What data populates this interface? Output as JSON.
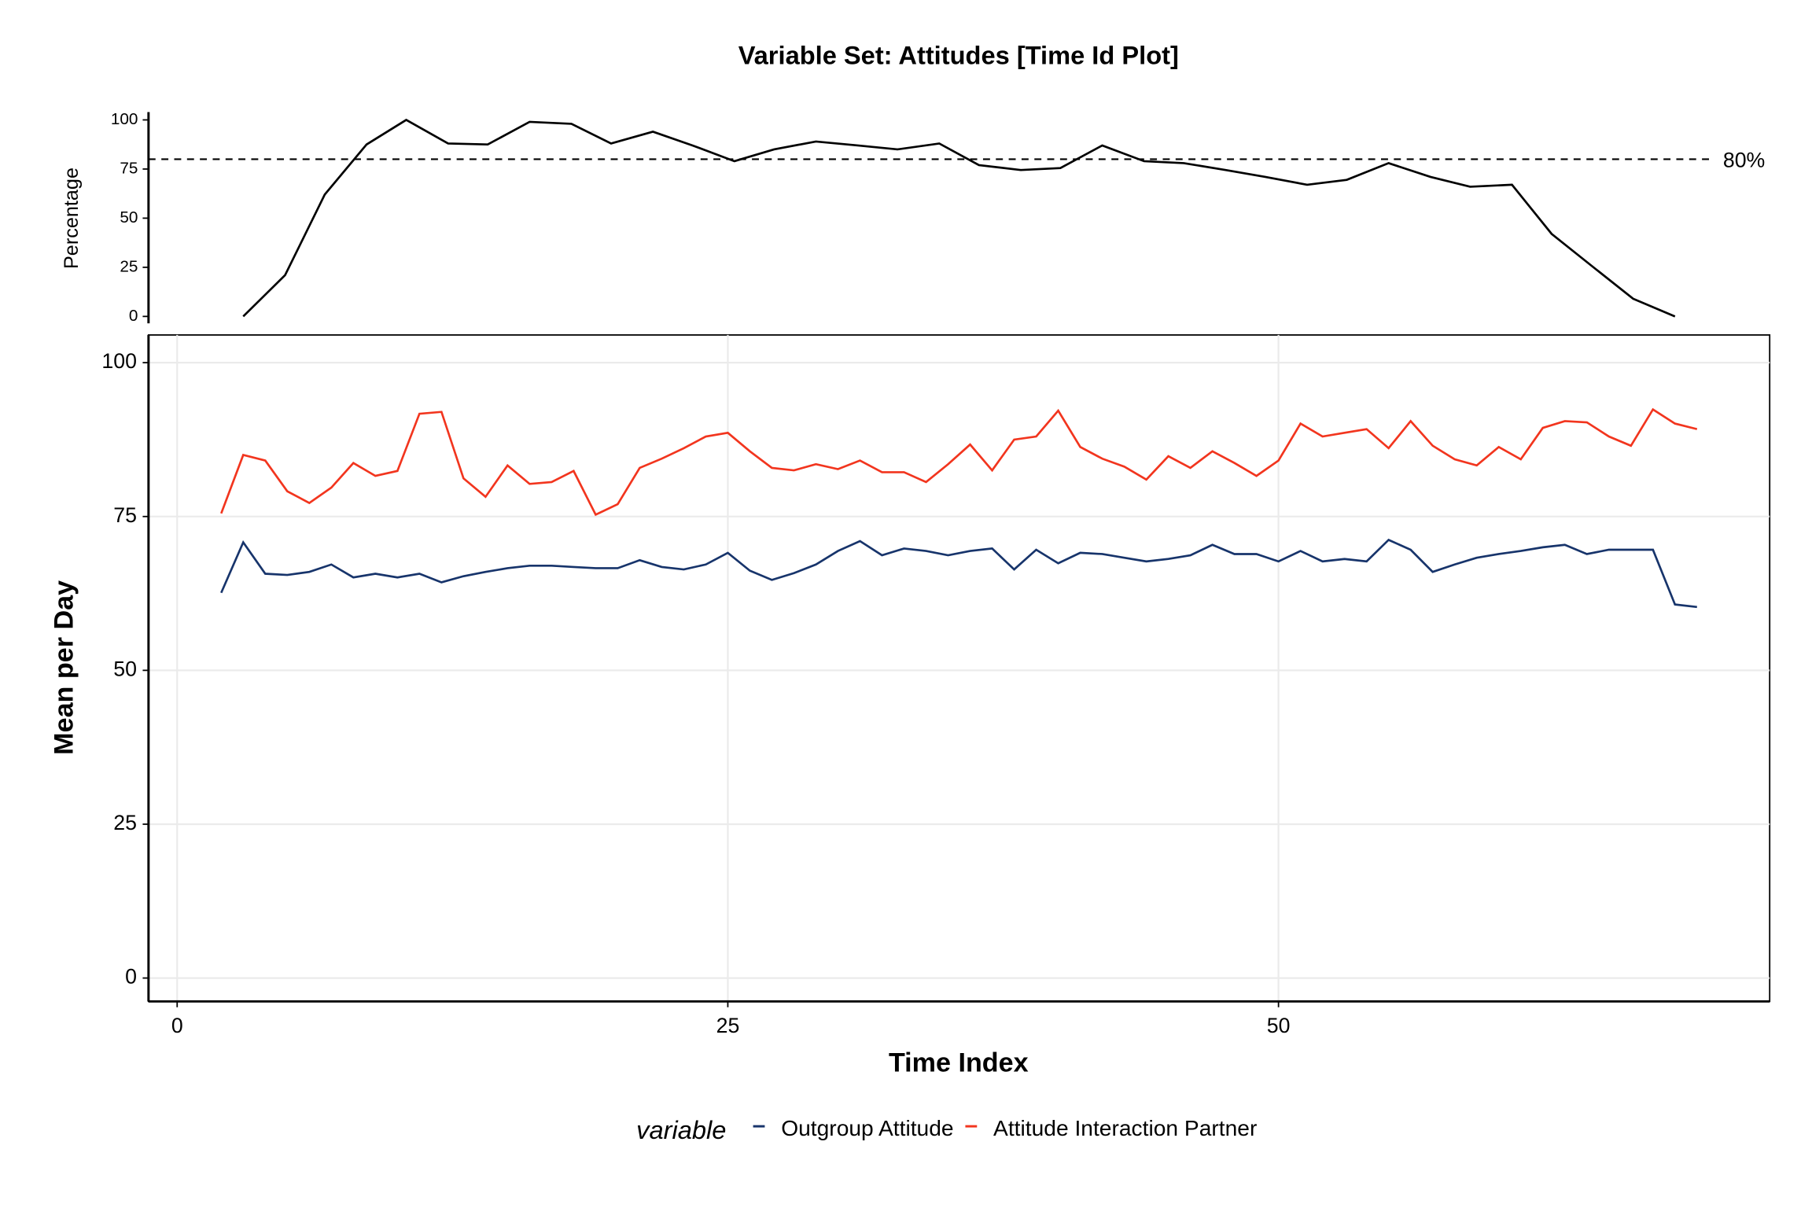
{
  "chart_data": [
    {
      "type": "line",
      "title": "Variable Set: Attitudes [Time Id Plot]",
      "y_label": "Percentage",
      "x": [
        3,
        4.9,
        6.7,
        8.6,
        10.4,
        12.3,
        14.1,
        16,
        17.9,
        19.7,
        21.6,
        23.4,
        25.3,
        27.1,
        29,
        30.9,
        32.7,
        34.6,
        36.4,
        38.3,
        40.1,
        42,
        43.9,
        45.7,
        47.6,
        49.4,
        51.3,
        53.1,
        55,
        56.9,
        58.7,
        60.6,
        62.4,
        64.3,
        66.1,
        68
      ],
      "series": [
        {
          "color": "#000000",
          "values": [
            0,
            21,
            62,
            87.5,
            100,
            88,
            87.5,
            99,
            98,
            88,
            94,
            87,
            79,
            85,
            89,
            87,
            85,
            88,
            77,
            74.5,
            75.5,
            87,
            79,
            78,
            74.5,
            71,
            67,
            69.5,
            78,
            71,
            66,
            67,
            42,
            25,
            9,
            0
          ]
        }
      ],
      "xlim": [
        -1.3,
        72.3
      ],
      "ylim": [
        -3.5,
        104
      ],
      "yticks": [
        0,
        25,
        50,
        75,
        100
      ],
      "grid": false,
      "reference_line": {
        "value": 80,
        "label": "80%"
      }
    },
    {
      "type": "line",
      "x_label": "Time Index",
      "y_label": "Mean per Day",
      "legend_title": "variable",
      "x": [
        2,
        3,
        4,
        5,
        6,
        7,
        8,
        9,
        10,
        11,
        12,
        13,
        14,
        15,
        16,
        17,
        18,
        19,
        20,
        21,
        22,
        23,
        24,
        25,
        26,
        27,
        28,
        29,
        30,
        31,
        32,
        33,
        34,
        35,
        36,
        37,
        38,
        39,
        40,
        41,
        42,
        43,
        44,
        45,
        46,
        47,
        48,
        49,
        50,
        51,
        52,
        53,
        54,
        55,
        56,
        57,
        58,
        59,
        60,
        61,
        62,
        63,
        64,
        65,
        66,
        67,
        68,
        69
      ],
      "series": [
        {
          "name": "Outgroup Attitude",
          "color": "#17346b",
          "values": [
            62.6,
            70.8,
            65.7,
            65.5,
            66.0,
            67.2,
            65.1,
            65.7,
            65.1,
            65.7,
            64.3,
            65.3,
            66.0,
            66.6,
            67.0,
            67.0,
            66.8,
            66.6,
            66.6,
            67.9,
            66.8,
            66.4,
            67.2,
            69.1,
            66.2,
            64.7,
            65.8,
            67.2,
            69.4,
            71.0,
            68.7,
            69.8,
            69.4,
            68.7,
            69.4,
            69.8,
            66.4,
            69.6,
            67.4,
            69.1,
            68.9,
            68.3,
            67.7,
            68.1,
            68.7,
            70.4,
            68.9,
            68.9,
            67.7,
            69.4,
            67.7,
            68.1,
            67.7,
            71.2,
            69.6,
            66.0,
            67.2,
            68.3,
            68.9,
            69.4,
            70.0,
            70.4,
            68.9,
            69.6,
            69.6,
            69.6,
            60.7,
            60.3
          ]
        },
        {
          "name": "Attitude Interaction Partner",
          "color": "#f2351e",
          "values": [
            75.5,
            85.0,
            84.1,
            79.1,
            77.2,
            79.7,
            83.7,
            81.6,
            82.4,
            91.7,
            92.0,
            81.2,
            78.2,
            83.3,
            80.3,
            80.6,
            82.4,
            75.3,
            77.0,
            82.9,
            84.4,
            86.1,
            88.0,
            88.6,
            85.6,
            82.9,
            82.5,
            83.5,
            82.7,
            84.1,
            82.2,
            82.2,
            80.6,
            83.5,
            86.7,
            82.5,
            87.5,
            88.0,
            92.2,
            86.3,
            84.4,
            83.1,
            81.0,
            84.8,
            82.9,
            85.6,
            83.7,
            81.6,
            84.1,
            90.1,
            88.0,
            88.6,
            89.2,
            86.1,
            90.5,
            86.5,
            84.3,
            83.3,
            86.3,
            84.3,
            89.4,
            90.5,
            90.3,
            88.0,
            86.5,
            92.4,
            90.1,
            89.2
          ]
        }
      ],
      "xlim": [
        -1.3,
        72.3
      ],
      "ylim": [
        -3.8,
        104.5
      ],
      "xticks": [
        0,
        25,
        50
      ],
      "yticks": [
        0,
        25,
        50,
        75,
        100
      ],
      "grid": true
    }
  ]
}
